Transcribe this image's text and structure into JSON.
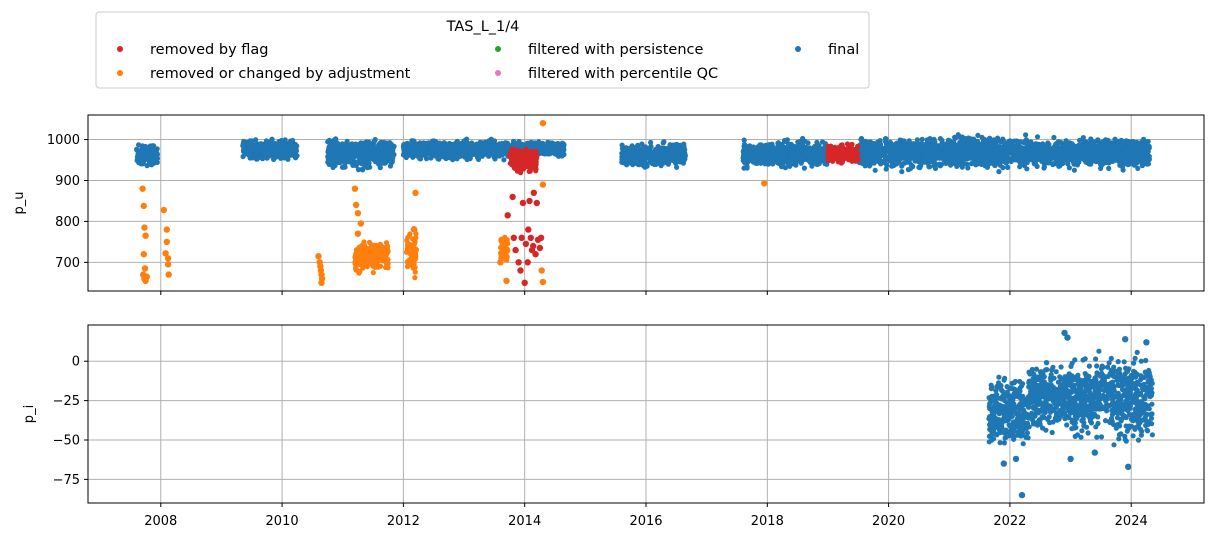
{
  "legend": {
    "title": "TAS_L_1/4",
    "entries": [
      {
        "label": "removed by flag",
        "color": "#d62728"
      },
      {
        "label": "removed or changed by adjustment",
        "color": "#ff7f0e"
      },
      {
        "label": "filtered with persistence",
        "color": "#2ca02c"
      },
      {
        "label": "filtered with percentile QC",
        "color": "#e377c2"
      },
      {
        "label": "final",
        "color": "#1f77b4"
      }
    ]
  },
  "chart_data": [
    {
      "type": "scatter",
      "ylabel": "p_u",
      "xlim": [
        2006.8,
        2025.2
      ],
      "ylim": [
        630,
        1060
      ],
      "yticks": [
        700,
        800,
        900,
        1000
      ],
      "xticks": [
        2008,
        2010,
        2012,
        2014,
        2016,
        2018,
        2020,
        2022,
        2024
      ],
      "grid": true,
      "series": [
        {
          "name": "final",
          "color": "#1f77b4",
          "bands": [
            {
              "x": [
                2007.6,
                2007.95
              ],
              "y": [
                930,
                995
              ]
            },
            {
              "x": [
                2009.35,
                2010.25
              ],
              "y": [
                945,
                1005
              ]
            },
            {
              "x": [
                2010.75,
                2011.85
              ],
              "y": [
                920,
                1015
              ]
            },
            {
              "x": [
                2012.0,
                2013.7
              ],
              "y": [
                945,
                1005
              ]
            },
            {
              "x": [
                2013.7,
                2014.65
              ],
              "y": [
                955,
                1000
              ]
            },
            {
              "x": [
                2015.6,
                2016.65
              ],
              "y": [
                925,
                1000
              ]
            },
            {
              "x": [
                2017.6,
                2019.0
              ],
              "y": [
                925,
                1005
              ]
            },
            {
              "x": [
                2019.5,
                2024.3
              ],
              "y": [
                920,
                1015
              ]
            }
          ]
        },
        {
          "name": "removed by flag",
          "color": "#d62728",
          "bands": [
            {
              "x": [
                2013.75,
                2014.2
              ],
              "y": [
                915,
                985
              ]
            },
            {
              "x": [
                2019.0,
                2019.5
              ],
              "y": [
                935,
                995
              ]
            }
          ],
          "points": [
            [
              2013.72,
              815
            ],
            [
              2013.8,
              860
            ],
            [
              2013.85,
              730
            ],
            [
              2013.9,
              700
            ],
            [
              2013.93,
              680
            ],
            [
              2013.97,
              845
            ],
            [
              2014.0,
              650
            ],
            [
              2014.02,
              745
            ],
            [
              2014.05,
              700
            ],
            [
              2014.08,
              850
            ],
            [
              2014.1,
              760
            ],
            [
              2014.12,
              730
            ],
            [
              2014.15,
              870
            ],
            [
              2014.18,
              720
            ],
            [
              2014.2,
              845
            ],
            [
              2014.22,
              755
            ],
            [
              2014.25,
              735
            ],
            [
              2014.27,
              760
            ],
            [
              2013.82,
              760
            ],
            [
              2013.95,
              760
            ],
            [
              2014.06,
              780
            ],
            [
              2014.14,
              740
            ]
          ]
        },
        {
          "name": "removed or changed by adjustment",
          "color": "#ff7f0e",
          "points": [
            [
              2007.7,
              880
            ],
            [
              2007.72,
              838
            ],
            [
              2007.73,
              785
            ],
            [
              2007.75,
              765
            ],
            [
              2007.72,
              720
            ],
            [
              2007.74,
              685
            ],
            [
              2007.71,
              670
            ],
            [
              2007.73,
              660
            ],
            [
              2007.75,
              655
            ],
            [
              2007.77,
              665
            ],
            [
              2008.05,
              828
            ],
            [
              2008.08,
              722
            ],
            [
              2008.1,
              780
            ],
            [
              2008.1,
              750
            ],
            [
              2008.12,
              710
            ],
            [
              2008.12,
              695
            ],
            [
              2008.13,
              670
            ],
            [
              2010.6,
              715
            ],
            [
              2010.62,
              700
            ],
            [
              2010.63,
              690
            ],
            [
              2010.64,
              680
            ],
            [
              2010.65,
              670
            ],
            [
              2010.66,
              660
            ],
            [
              2010.65,
              650
            ],
            [
              2011.2,
              880
            ],
            [
              2011.22,
              840
            ],
            [
              2011.25,
              820
            ],
            [
              2011.3,
              795
            ],
            [
              2011.25,
              770
            ],
            [
              2012.2,
              870
            ],
            [
              2013.6,
              700
            ],
            [
              2013.65,
              740
            ],
            [
              2013.62,
              755
            ],
            [
              2013.7,
              655
            ],
            [
              2014.3,
              1040
            ],
            [
              2014.3,
              890
            ],
            [
              2014.28,
              680
            ],
            [
              2014.3,
              652
            ],
            [
              2017.95,
              893
            ]
          ],
          "bands": [
            {
              "x": [
                2011.2,
                2011.35
              ],
              "y": [
                660,
                760
              ]
            },
            {
              "x": [
                2011.35,
                2011.75
              ],
              "y": [
                670,
                765
              ]
            },
            {
              "x": [
                2012.05,
                2012.22
              ],
              "y": [
                650,
                800
              ]
            },
            {
              "x": [
                2013.6,
                2013.72
              ],
              "y": [
                690,
                770
              ]
            }
          ]
        }
      ]
    },
    {
      "type": "scatter",
      "ylabel": "p_i",
      "xlim": [
        2006.8,
        2025.2
      ],
      "ylim": [
        -90,
        23
      ],
      "yticks": [
        -75,
        -50,
        -25,
        0
      ],
      "xticks": [
        2008,
        2010,
        2012,
        2014,
        2016,
        2018,
        2020,
        2022,
        2024
      ],
      "xticklabels": [
        "2008",
        "2010",
        "2012",
        "2014",
        "2016",
        "2018",
        "2020",
        "2022",
        "2024"
      ],
      "grid": true,
      "series": [
        {
          "name": "final",
          "color": "#1f77b4",
          "bands": [
            {
              "x": [
                2021.65,
                2022.3
              ],
              "y": [
                -60,
                -5
              ]
            },
            {
              "x": [
                2022.3,
                2023.0
              ],
              "y": [
                -50,
                5
              ]
            },
            {
              "x": [
                2023.0,
                2023.7
              ],
              "y": [
                -55,
                10
              ]
            },
            {
              "x": [
                2023.7,
                2024.35
              ],
              "y": [
                -60,
                10
              ]
            }
          ],
          "points": [
            [
              2022.2,
              -85
            ],
            [
              2022.9,
              18
            ],
            [
              2022.95,
              15
            ],
            [
              2023.9,
              14
            ],
            [
              2024.25,
              12
            ],
            [
              2021.9,
              -65
            ],
            [
              2022.1,
              -62
            ],
            [
              2023.0,
              -62
            ],
            [
              2023.95,
              -67
            ],
            [
              2023.4,
              -58
            ]
          ]
        }
      ]
    }
  ]
}
